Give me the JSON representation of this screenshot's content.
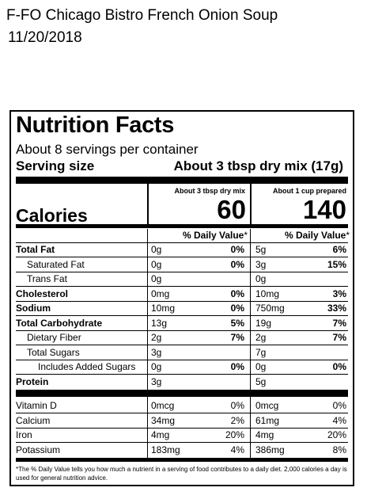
{
  "header": {
    "product_name": "F-FO Chicago Bistro French Onion Soup",
    "date": "11/20/2018"
  },
  "label": {
    "title": "Nutrition Facts",
    "servings": "About 8 servings per container",
    "serving_size_label": "Serving size",
    "serving_size_value": "About 3 tbsp dry mix (17g)",
    "col1_heading": "About 3 tbsp dry mix",
    "col2_heading": "About 1 cup prepared",
    "calories_label": "Calories",
    "calories_col1": "60",
    "calories_col2": "140",
    "dv_heading": "% Daily Value",
    "dv_asterisk": "*",
    "rows": [
      {
        "name": "Total Fat",
        "bold": true,
        "indent": 0,
        "a1": "0g",
        "p1": "0%",
        "a2": "5g",
        "p2": "6%"
      },
      {
        "name": "Saturated Fat",
        "bold": false,
        "indent": 1,
        "a1": "0g",
        "p1": "0%",
        "a2": "3g",
        "p2": "15%"
      },
      {
        "name": "Trans Fat",
        "bold": false,
        "indent": 1,
        "a1": "0g",
        "p1": "",
        "a2": "0g",
        "p2": ""
      },
      {
        "name": "Cholesterol",
        "bold": true,
        "indent": 0,
        "a1": "0mg",
        "p1": "0%",
        "a2": "10mg",
        "p2": "3%"
      },
      {
        "name": "Sodium",
        "bold": true,
        "indent": 0,
        "a1": "10mg",
        "p1": "0%",
        "a2": "750mg",
        "p2": "33%"
      },
      {
        "name": "Total Carbohydrate",
        "bold": true,
        "indent": 0,
        "a1": "13g",
        "p1": "5%",
        "a2": "19g",
        "p2": "7%"
      },
      {
        "name": "Dietary Fiber",
        "bold": false,
        "indent": 1,
        "a1": "2g",
        "p1": "7%",
        "a2": "2g",
        "p2": "7%"
      },
      {
        "name": "Total Sugars",
        "bold": false,
        "indent": 1,
        "a1": "3g",
        "p1": "",
        "a2": "7g",
        "p2": ""
      },
      {
        "name": "Includes Added Sugars",
        "bold": false,
        "indent": 2,
        "a1": "0g",
        "p1": "0%",
        "a2": "0g",
        "p2": "0%"
      },
      {
        "name": "Protein",
        "bold": true,
        "indent": 0,
        "a1": "3g",
        "p1": "",
        "a2": "5g",
        "p2": ""
      }
    ],
    "vitamins": [
      {
        "name": "Vitamin D",
        "a1": "0mcg",
        "p1": "0%",
        "a2": "0mcg",
        "p2": "0%"
      },
      {
        "name": "Calcium",
        "a1": "34mg",
        "p1": "2%",
        "a2": "61mg",
        "p2": "4%"
      },
      {
        "name": "Iron",
        "a1": "4mg",
        "p1": "20%",
        "a2": "4mg",
        "p2": "20%"
      },
      {
        "name": "Potassium",
        "a1": "183mg",
        "p1": "4%",
        "a2": "386mg",
        "p2": "8%"
      }
    ],
    "footnote": "*The % Daily Value tells you how much a nutrient in a serving of food contributes to a daily diet. 2,000 calories a day is used for general nutrition advice."
  }
}
